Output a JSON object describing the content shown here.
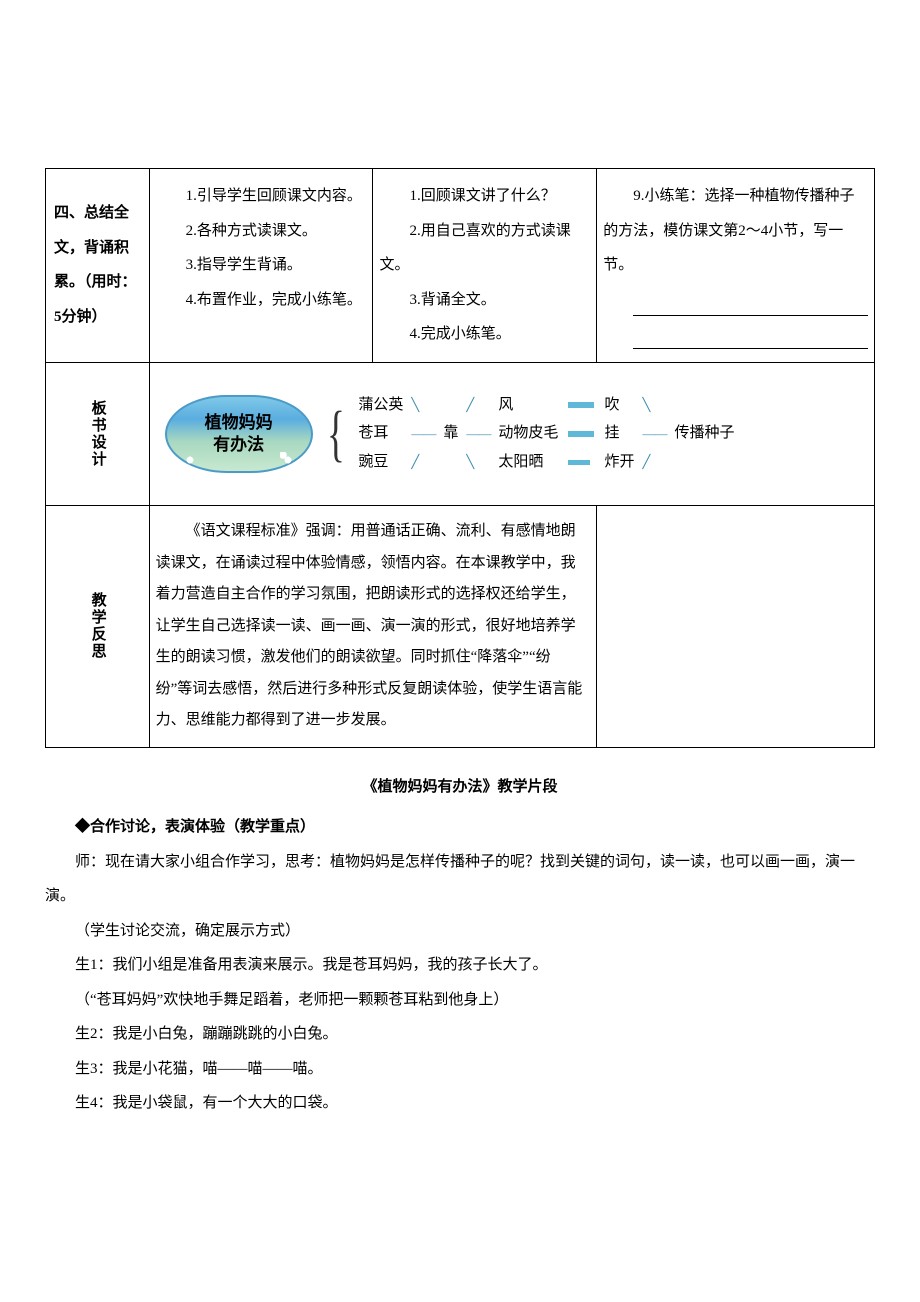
{
  "table": {
    "row1": {
      "left": "四、总结全文，背诵积累。（用时：5分钟）",
      "colB": [
        "1.引导学生回顾课文内容。",
        "2.各种方式读课文。",
        "3.指导学生背诵。",
        "4.布置作业，完成小练笔。"
      ],
      "colC": [
        "1.回顾课文讲了什么？",
        "2.用自己喜欢的方式读课文。",
        "3.背诵全文。",
        "4.完成小练笔。"
      ],
      "colD": {
        "text": "9.小练笔：选择一种植物传播种子的方法，模仿课文第2～4小节，写一节。"
      }
    },
    "row2": {
      "label": "板书设计",
      "badge_l1": "植物妈妈",
      "badge_l2": "有办法",
      "plants": [
        "蒲公英",
        "苍耳",
        "豌豆"
      ],
      "rely": "靠",
      "agents": [
        "风",
        "动物皮毛",
        "太阳晒"
      ],
      "verbs": [
        "吹",
        "挂",
        "炸开"
      ],
      "result": "传播种子"
    },
    "row3": {
      "label": "教学反思",
      "text": "《语文课程标准》强调：用普通话正确、流利、有感情地朗读课文，在诵读过程中体验情感，领悟内容。在本课教学中，我着力营造自主合作的学习氛围，把朗读形式的选择权还给学生，让学生自己选择读一读、画一画、演一演的形式，很好地培养学生的朗读习惯，激发他们的朗读欲望。同时抓住“降落伞”“纷纷”等词去感悟，然后进行多种形式反复朗读体验，使学生语言能力、思维能力都得到了进一步发展。"
    }
  },
  "below": {
    "title": "《植物妈妈有办法》教学片段",
    "sub": "◆合作讨论，表演体验（教学重点）",
    "lines": [
      "师：现在请大家小组合作学习，思考：植物妈妈是怎样传播种子的呢？找到关键的词句，读一读，也可以画一画，演一演。",
      "（学生讨论交流，确定展示方式）",
      "生1：我们小组是准备用表演来展示。我是苍耳妈妈，我的孩子长大了。",
      "（“苍耳妈妈”欢快地手舞足蹈着，老师把一颗颗苍耳粘到他身上）",
      "生2：我是小白兔，蹦蹦跳跳的小白兔。",
      "生3：我是小花猫，喵——喵——喵。",
      "生4：我是小袋鼠，有一个大大的口袋。"
    ]
  },
  "colors": {
    "border": "#000000",
    "accent_cyan": "#5fb8d8",
    "badge_grad_top": "#7fc8e8",
    "badge_border": "#4a9bc8"
  }
}
